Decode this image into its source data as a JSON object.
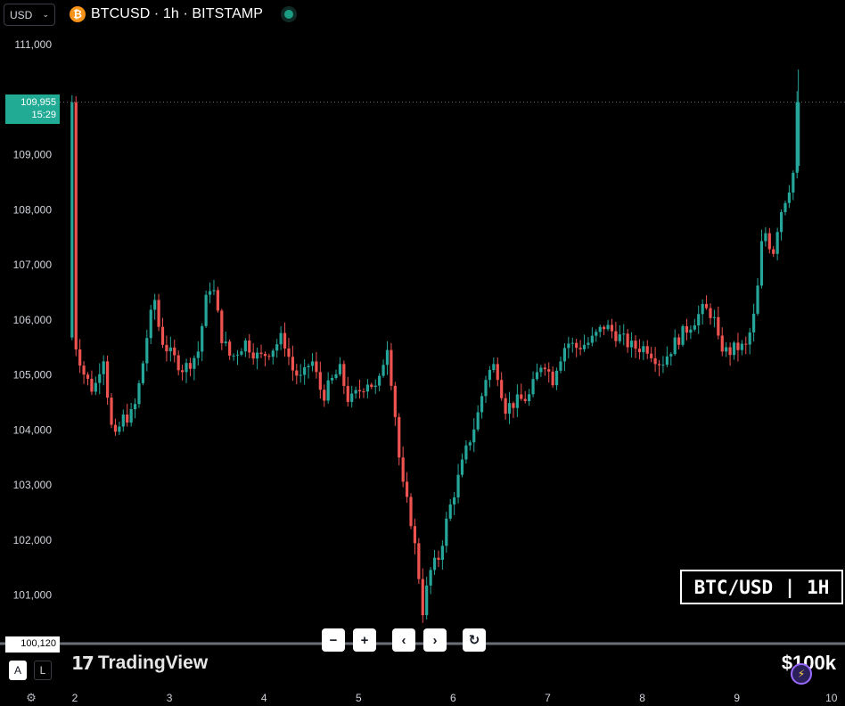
{
  "header": {
    "currency": "USD",
    "symbol_title": "BTCUSD · 1h · BITSTAMP",
    "coin_glyph": "₿"
  },
  "price_tag": {
    "price": "109,955",
    "countdown": "15:29"
  },
  "low_tag": "100,120",
  "chart_label": "BTC/USD | 1H",
  "controls": {
    "zoom_out": "−",
    "zoom_in": "+",
    "scroll_left": "‹",
    "scroll_right": "›",
    "reset": "↻",
    "auto_scale": "A",
    "log_scale": "L"
  },
  "branding": {
    "logo_mark": "17",
    "logo_text": "TradingView",
    "watermark": "$100k"
  },
  "icons": [
    "bitcoin-icon",
    "chevron-down-icon",
    "minus-icon",
    "plus-icon",
    "chevron-left-icon",
    "chevron-right-icon",
    "reset-icon",
    "settings-icon",
    "spark-icon"
  ],
  "colors": {
    "up": "#26a69a",
    "down": "#ef5350",
    "price_tag": "#22ab94",
    "background": "#000000"
  },
  "chart_data": {
    "type": "candlestick",
    "symbol": "BTCUSD",
    "interval": "1h",
    "exchange": "BITSTAMP",
    "y_ticks": [
      111000,
      109000,
      108000,
      107000,
      106000,
      105000,
      104000,
      103000,
      102000,
      101000
    ],
    "y_tick_labels": [
      "111,000",
      "109,000",
      "108,000",
      "107,000",
      "106,000",
      "105,000",
      "104,000",
      "103,000",
      "102,000",
      "101,000"
    ],
    "x_ticks": [
      2,
      3,
      4,
      5,
      6,
      7,
      8,
      9,
      10
    ],
    "x_tick_labels": [
      "2",
      "3",
      "4",
      "5",
      "6",
      "7",
      "8",
      "9",
      "10"
    ],
    "ylim": [
      100000,
      111500
    ],
    "xlim": [
      1.97,
      10.08
    ],
    "last_price": 109955,
    "close_path": [
      [
        2.0,
        105600
      ],
      [
        2.1,
        105000
      ],
      [
        2.2,
        104700
      ],
      [
        2.3,
        105400
      ],
      [
        2.38,
        104100
      ],
      [
        2.42,
        103800
      ],
      [
        2.5,
        104200
      ],
      [
        2.62,
        104300
      ],
      [
        2.7,
        105000
      ],
      [
        2.78,
        105900
      ],
      [
        2.85,
        106400
      ],
      [
        2.9,
        105700
      ],
      [
        3.0,
        105400
      ],
      [
        3.15,
        105100
      ],
      [
        3.3,
        105400
      ],
      [
        3.4,
        106500
      ],
      [
        3.45,
        106700
      ],
      [
        3.55,
        105700
      ],
      [
        3.65,
        105300
      ],
      [
        3.8,
        105600
      ],
      [
        3.95,
        105300
      ],
      [
        4.1,
        105500
      ],
      [
        4.2,
        105700
      ],
      [
        4.3,
        105100
      ],
      [
        4.4,
        104900
      ],
      [
        4.5,
        105300
      ],
      [
        4.62,
        104600
      ],
      [
        4.72,
        104900
      ],
      [
        4.8,
        105100
      ],
      [
        4.9,
        104500
      ],
      [
        5.0,
        104700
      ],
      [
        5.1,
        104900
      ],
      [
        5.2,
        104700
      ],
      [
        5.3,
        105600
      ],
      [
        5.38,
        104400
      ],
      [
        5.45,
        103100
      ],
      [
        5.55,
        102400
      ],
      [
        5.62,
        101600
      ],
      [
        5.68,
        100700
      ],
      [
        5.75,
        101400
      ],
      [
        5.85,
        101700
      ],
      [
        5.95,
        102500
      ],
      [
        6.05,
        103100
      ],
      [
        6.15,
        103700
      ],
      [
        6.25,
        104200
      ],
      [
        6.35,
        105000
      ],
      [
        6.45,
        105200
      ],
      [
        6.55,
        104400
      ],
      [
        6.65,
        104500
      ],
      [
        6.8,
        104600
      ],
      [
        6.95,
        105300
      ],
      [
        7.05,
        104900
      ],
      [
        7.1,
        105200
      ],
      [
        7.2,
        105600
      ],
      [
        7.3,
        105500
      ],
      [
        7.45,
        105600
      ],
      [
        7.6,
        105900
      ],
      [
        7.75,
        105700
      ],
      [
        7.9,
        105500
      ],
      [
        8.05,
        105500
      ],
      [
        8.2,
        105200
      ],
      [
        8.35,
        105600
      ],
      [
        8.5,
        105900
      ],
      [
        8.65,
        106200
      ],
      [
        8.75,
        106100
      ],
      [
        8.8,
        105600
      ],
      [
        8.9,
        105400
      ],
      [
        9.0,
        105500
      ],
      [
        9.1,
        105500
      ],
      [
        9.2,
        106200
      ],
      [
        9.28,
        107700
      ],
      [
        9.38,
        107200
      ],
      [
        9.45,
        107900
      ],
      [
        9.55,
        108400
      ],
      [
        9.6,
        108700
      ],
      [
        9.63,
        108800
      ],
      [
        9.65,
        109955
      ]
    ],
    "wick_range": 180
  }
}
